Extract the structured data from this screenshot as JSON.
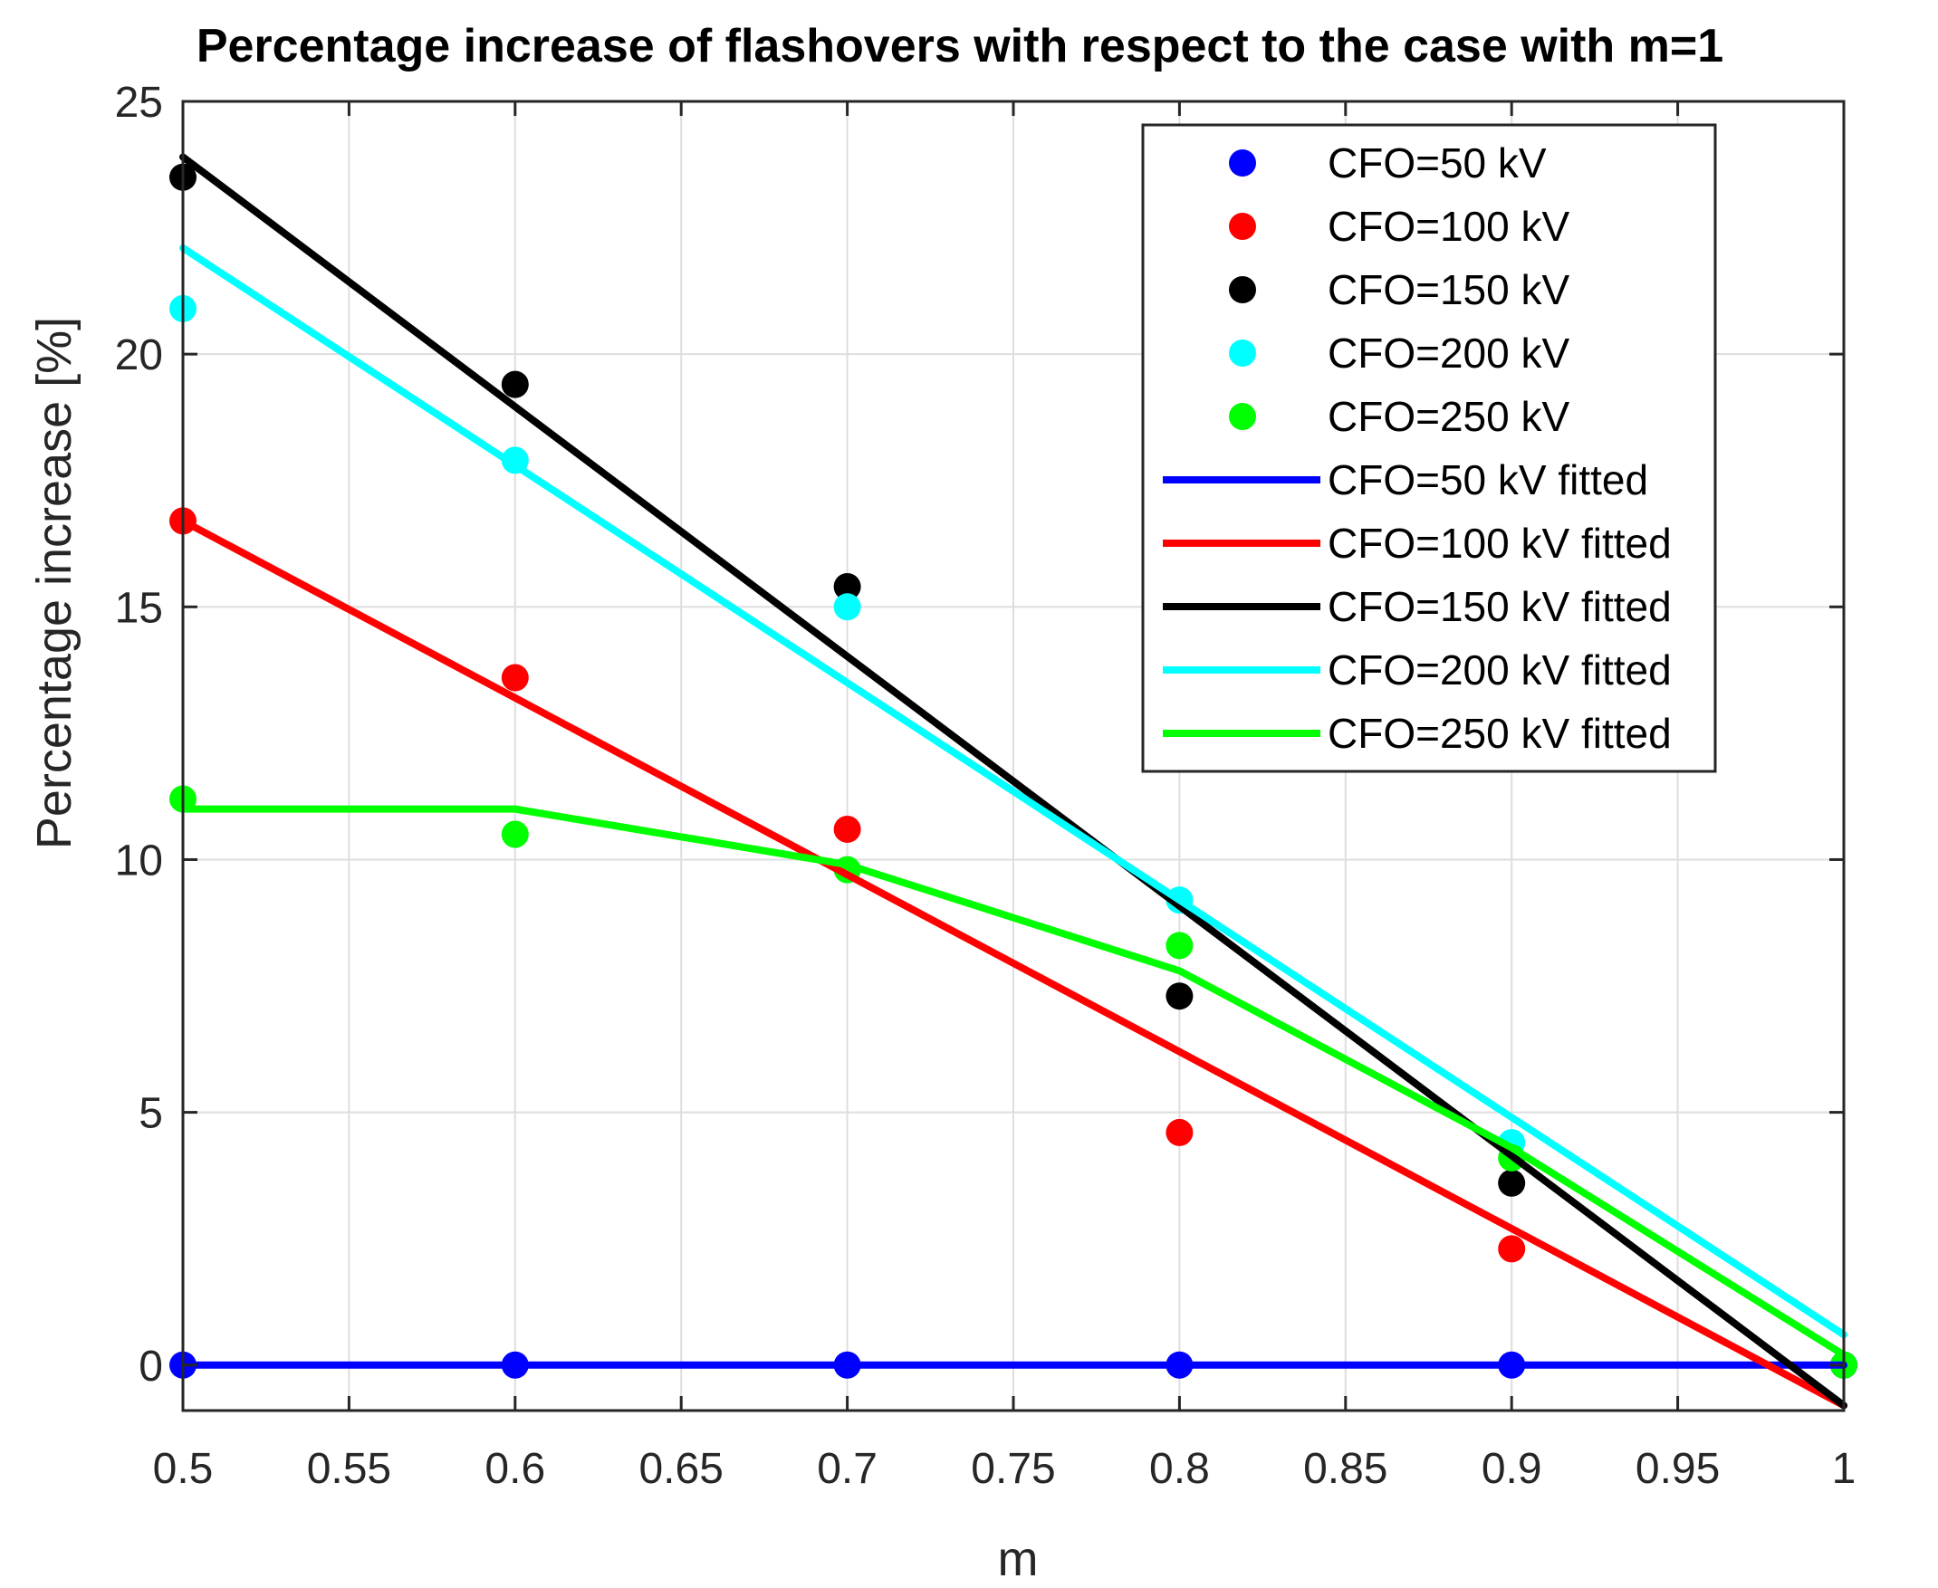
{
  "chart_data": {
    "type": "scatter",
    "title": "Percentage increase of flashovers with respect to the case with m=1",
    "xlabel": "m",
    "ylabel": "Percentage increase [%]",
    "xlim": [
      0.5,
      1.0
    ],
    "ylim": [
      -0.9,
      25
    ],
    "grid": true,
    "legend_position": "top-right",
    "x_ticks": [
      0.5,
      0.55,
      0.6,
      0.65,
      0.7,
      0.75,
      0.8,
      0.85,
      0.9,
      0.95,
      1.0
    ],
    "x_tick_labels": [
      "0.5",
      "0.55",
      "0.6",
      "0.65",
      "0.7",
      "0.75",
      "0.8",
      "0.85",
      "0.9",
      "0.95",
      "1"
    ],
    "y_ticks": [
      0,
      5,
      10,
      15,
      20,
      25
    ],
    "y_tick_labels": [
      "0",
      "5",
      "10",
      "15",
      "20",
      "25"
    ],
    "series": [
      {
        "name": "CFO=50 kV",
        "kind": "points",
        "color": "#0000ff",
        "x": [
          0.5,
          0.6,
          0.7,
          0.8,
          0.9,
          1.0
        ],
        "y": [
          0,
          0,
          0,
          0,
          0,
          0
        ]
      },
      {
        "name": "CFO=100 kV",
        "kind": "points",
        "color": "#ff0000",
        "x": [
          0.5,
          0.6,
          0.7,
          0.8,
          0.9,
          1.0
        ],
        "y": [
          16.7,
          13.6,
          10.6,
          4.6,
          2.3,
          0
        ]
      },
      {
        "name": "CFO=150 kV",
        "kind": "points",
        "color": "#000000",
        "x": [
          0.5,
          0.6,
          0.7,
          0.8,
          0.9,
          1.0
        ],
        "y": [
          23.5,
          19.4,
          15.4,
          7.3,
          3.6,
          0
        ]
      },
      {
        "name": "CFO=200 kV",
        "kind": "points",
        "color": "#00ffff",
        "x": [
          0.5,
          0.6,
          0.7,
          0.8,
          0.9,
          1.0
        ],
        "y": [
          20.9,
          17.9,
          15.0,
          9.2,
          4.4,
          0
        ]
      },
      {
        "name": "CFO=250 kV",
        "kind": "points",
        "color": "#00ff00",
        "x": [
          0.5,
          0.6,
          0.7,
          0.8,
          0.9,
          1.0
        ],
        "y": [
          11.2,
          10.5,
          9.8,
          8.3,
          4.1,
          0
        ]
      },
      {
        "name": "CFO=50 kV fitted",
        "kind": "line",
        "color": "#0000ff",
        "x": [
          0.5,
          1.0
        ],
        "y": [
          0,
          0
        ]
      },
      {
        "name": "CFO=100 kV fitted",
        "kind": "line",
        "color": "#ff0000",
        "x": [
          0.5,
          0.6,
          0.7,
          0.8,
          0.9,
          1.0
        ],
        "y": [
          16.7,
          13.2,
          9.7,
          6.2,
          2.7,
          -0.8
        ]
      },
      {
        "name": "CFO=150 kV fitted",
        "kind": "line",
        "color": "#000000",
        "x": [
          0.5,
          1.0
        ],
        "y": [
          23.9,
          -0.8
        ]
      },
      {
        "name": "CFO=200 kV fitted",
        "kind": "line",
        "color": "#00ffff",
        "x": [
          0.5,
          1.0
        ],
        "y": [
          22.1,
          0.6
        ]
      },
      {
        "name": "CFO=250 kV fitted",
        "kind": "line",
        "color": "#00ff00",
        "x": [
          0.5,
          0.6,
          0.7,
          0.8,
          0.9,
          1.0
        ],
        "y": [
          11.0,
          11.0,
          9.9,
          7.8,
          4.3,
          0.2
        ]
      }
    ]
  }
}
